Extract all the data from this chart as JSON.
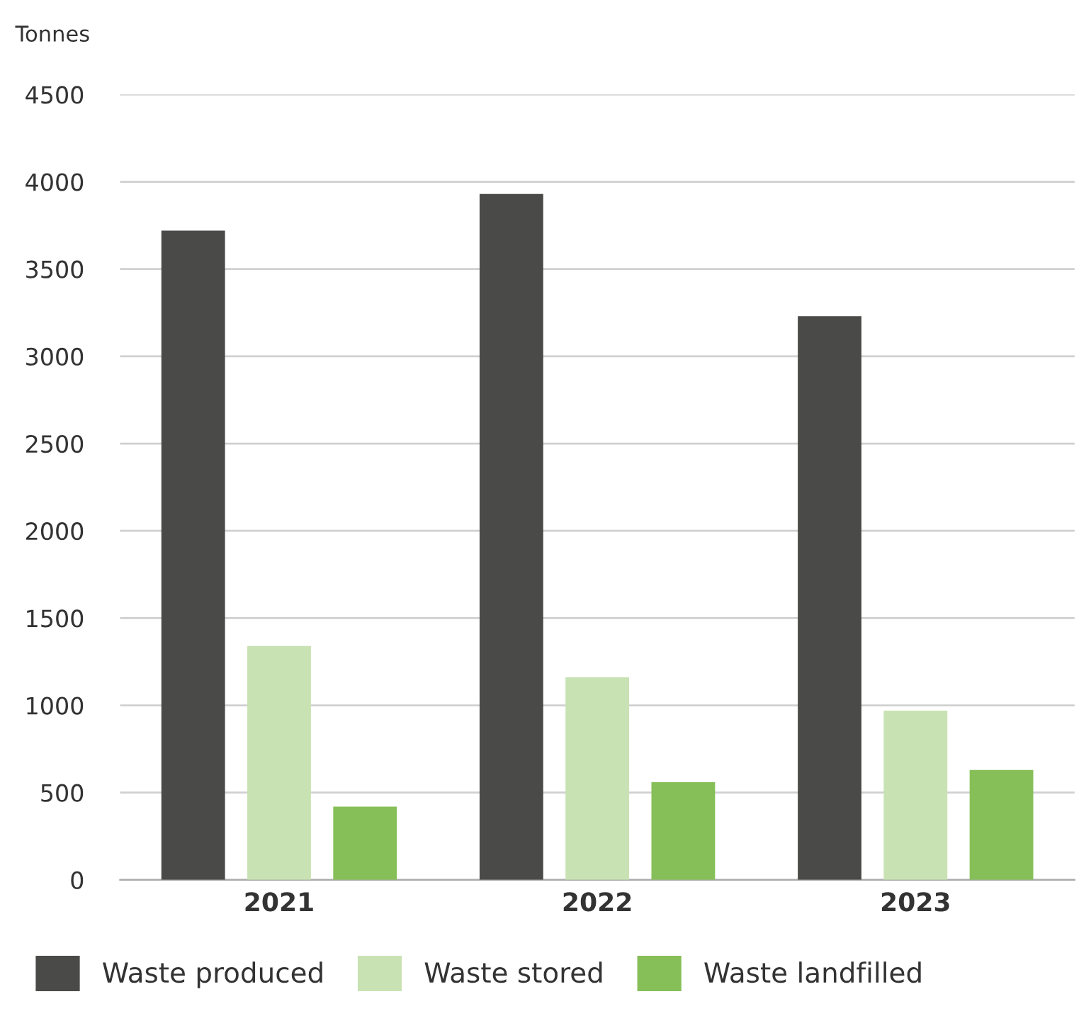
{
  "chart_data": {
    "type": "bar",
    "ylabel": "Tonnes",
    "categories": [
      "2021",
      "2022",
      "2023"
    ],
    "series": [
      {
        "name": "Waste produced",
        "color": "#4a4a48",
        "values": [
          3720,
          3930,
          3230
        ]
      },
      {
        "name": "Waste stored",
        "color": "#c9e2b3",
        "values": [
          1340,
          1160,
          970
        ]
      },
      {
        "name": "Waste landfilled",
        "color": "#86bf58",
        "values": [
          420,
          560,
          630
        ]
      }
    ],
    "ylim": [
      0,
      4500
    ],
    "yticks": [
      0,
      500,
      1000,
      1500,
      2000,
      2500,
      3000,
      3500,
      4000,
      4500
    ],
    "grid": "y",
    "legend": "bottom"
  }
}
